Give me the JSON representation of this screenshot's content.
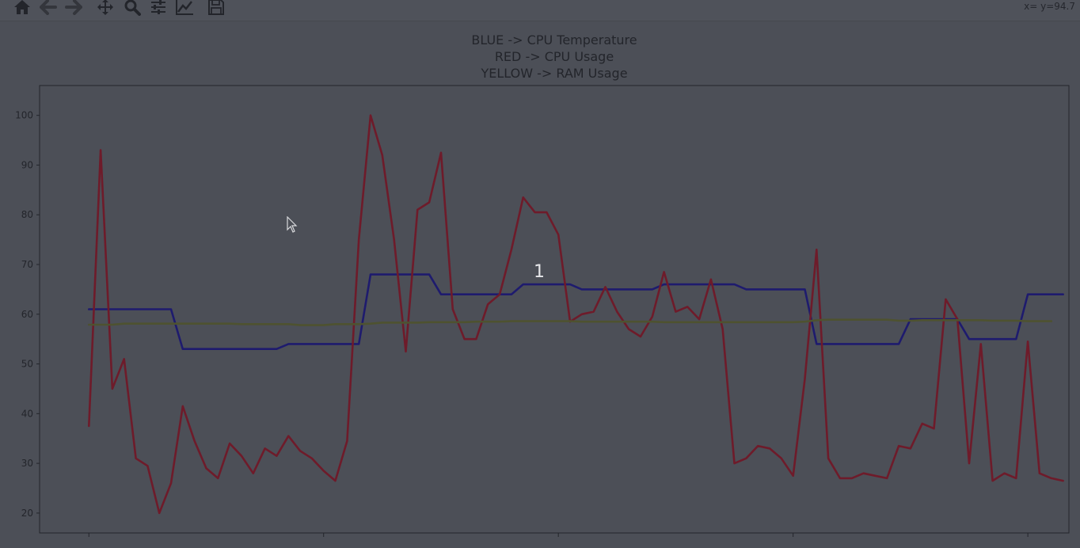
{
  "toolbar": {
    "buttons": [
      {
        "name": "home-icon",
        "glyph": "⌂",
        "label": "Home"
      },
      {
        "name": "back-icon",
        "glyph": "←",
        "label": "Back"
      },
      {
        "name": "forward-icon",
        "glyph": "→",
        "label": "Forward"
      },
      {
        "name": "pan-icon",
        "glyph": "✥",
        "label": "Pan"
      },
      {
        "name": "zoom-icon",
        "glyph": "🔍",
        "label": "Zoom"
      },
      {
        "name": "configure-icon",
        "glyph": "≡",
        "label": "Configure subplots"
      },
      {
        "name": "axes-icon",
        "glyph": "📈",
        "label": "Edit axes"
      },
      {
        "name": "save-icon",
        "glyph": "💾",
        "label": "Save"
      }
    ],
    "coords": "x= y=94.7"
  },
  "badge": "1",
  "chart_data": {
    "type": "line",
    "title_lines": [
      "BLUE -> CPU Temperature",
      "RED -> CPU Usage",
      "YELLOW ->  RAM Usage"
    ],
    "ylim": [
      16,
      106
    ],
    "yticks": [
      20,
      30,
      40,
      50,
      60,
      70,
      80,
      90,
      100
    ],
    "xlim": [
      -4.2,
      83.5
    ],
    "xticks": [
      0,
      20,
      40,
      60,
      80
    ],
    "xtick_labels": [
      "",
      "",
      "",
      "",
      ""
    ],
    "grid": false,
    "series": [
      {
        "color": "#1e1b6e",
        "values": [
          61,
          61,
          61,
          61,
          61,
          61,
          61,
          61,
          53,
          53,
          53,
          53,
          53,
          53,
          53,
          53,
          53,
          54,
          54,
          54,
          54,
          54,
          54,
          54,
          68,
          68,
          68,
          68,
          68,
          68,
          64,
          64,
          64,
          64,
          64,
          64,
          64,
          66,
          66,
          66,
          66,
          66,
          65,
          65,
          65,
          65,
          65,
          65,
          65,
          66,
          66,
          66,
          66,
          66,
          66,
          66,
          65,
          65,
          65,
          65,
          65,
          65,
          54,
          54,
          54,
          54,
          54,
          54,
          54,
          54,
          59,
          59,
          59,
          59,
          59,
          55,
          55,
          55,
          55,
          55,
          64,
          64,
          64,
          64
        ]
      },
      {
        "color": "#6e1b2a",
        "values": [
          37.5,
          93,
          45,
          51,
          31,
          29.5,
          20,
          26,
          41.5,
          34.5,
          29,
          27,
          34,
          31.5,
          28,
          33,
          31.5,
          35.5,
          32.5,
          31,
          28.5,
          26.5,
          34.5,
          75,
          100,
          92,
          75,
          52.5,
          81,
          82.5,
          92.5,
          61,
          55,
          55,
          62,
          64,
          73,
          83.5,
          80.5,
          80.5,
          76,
          58.5,
          60,
          60.5,
          65.5,
          60.5,
          57,
          55.5,
          59.5,
          68.5,
          60.5,
          61.5,
          59,
          67,
          57,
          30,
          31,
          33.5,
          33,
          31,
          27.5,
          47,
          73,
          31,
          27,
          27,
          28,
          27.5,
          27,
          33.5,
          33,
          38,
          37,
          63,
          59,
          30,
          54,
          26.5,
          28,
          27,
          54.5,
          28,
          27,
          26.5
        ]
      },
      {
        "color": "#4e5230",
        "values": [
          57.9,
          57.9,
          57.9,
          58.1,
          58.1,
          58.1,
          58.1,
          58.1,
          58.1,
          58.1,
          58.1,
          58.1,
          58.1,
          58.0,
          58.0,
          58.0,
          58.0,
          58.0,
          57.8,
          57.8,
          57.8,
          58.0,
          58.0,
          58.0,
          58.1,
          58.3,
          58.3,
          58.3,
          58.3,
          58.4,
          58.4,
          58.4,
          58.4,
          58.5,
          58.5,
          58.5,
          58.6,
          58.6,
          58.6,
          58.6,
          58.6,
          58.6,
          58.5,
          58.5,
          58.5,
          58.5,
          58.5,
          58.5,
          58.5,
          58.4,
          58.4,
          58.4,
          58.4,
          58.4,
          58.4,
          58.4,
          58.4,
          58.4,
          58.4,
          58.4,
          58.4,
          58.5,
          58.8,
          58.9,
          58.9,
          58.9,
          58.9,
          58.9,
          58.9,
          58.7,
          58.7,
          58.8,
          58.8,
          58.8,
          58.8,
          58.8,
          58.8,
          58.7,
          58.7,
          58.7,
          58.6,
          58.6,
          58.6,
          null
        ]
      }
    ]
  }
}
